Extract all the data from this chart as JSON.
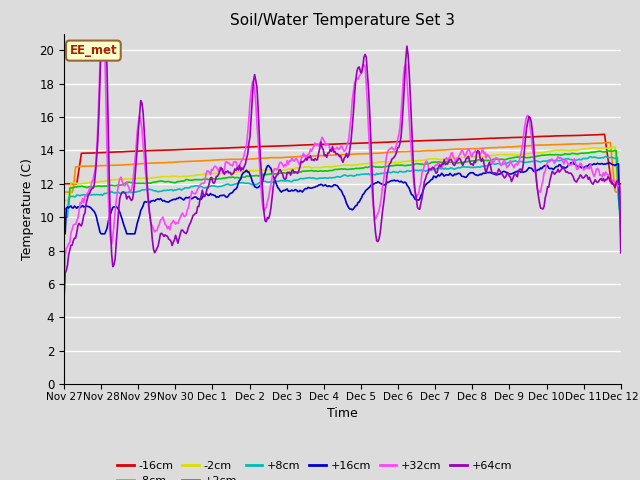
{
  "title": "Soil/Water Temperature Set 3",
  "xlabel": "Time",
  "ylabel": "Temperature (C)",
  "ylim": [
    0,
    21
  ],
  "yticks": [
    0,
    2,
    4,
    6,
    8,
    10,
    12,
    14,
    16,
    18,
    20
  ],
  "background_color": "#dcdcdc",
  "plot_bg_color": "#dcdcdc",
  "annotation_text": "EE_met",
  "annotation_bg": "#ffffcc",
  "annotation_border": "#996633",
  "series": {
    "-16cm": {
      "color": "#dd0000",
      "linewidth": 1.2
    },
    "-8cm": {
      "color": "#ff8800",
      "linewidth": 1.2
    },
    "-2cm": {
      "color": "#dddd00",
      "linewidth": 1.2
    },
    "+2cm": {
      "color": "#00cc00",
      "linewidth": 1.2
    },
    "+8cm": {
      "color": "#00bbbb",
      "linewidth": 1.2
    },
    "+16cm": {
      "color": "#0000cc",
      "linewidth": 1.2
    },
    "+32cm": {
      "color": "#ff44ff",
      "linewidth": 1.2
    },
    "+64cm": {
      "color": "#9900bb",
      "linewidth": 1.2
    }
  },
  "n_points": 480,
  "x_start": 0,
  "x_end": 15,
  "xtick_positions": [
    0,
    1,
    2,
    3,
    4,
    5,
    6,
    7,
    8,
    9,
    10,
    11,
    12,
    13,
    14,
    15
  ],
  "xtick_labels": [
    "Nov 27",
    "Nov 28",
    "Nov 29",
    "Nov 30",
    "Dec 1",
    "Dec 2",
    "Dec 3",
    "Dec 4",
    "Dec 5",
    "Dec 6",
    "Dec 7",
    "Dec 8",
    "Dec 9",
    "Dec 10",
    "Dec 11",
    "Dec 12"
  ]
}
